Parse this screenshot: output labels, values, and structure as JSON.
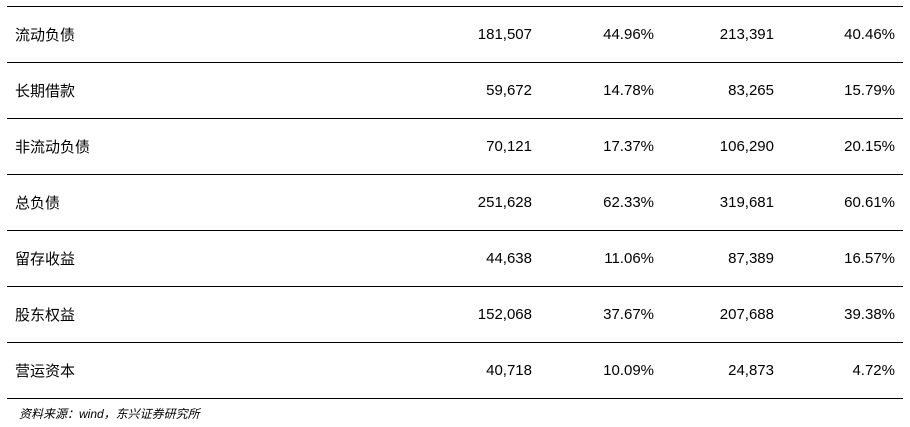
{
  "table": {
    "rows": [
      [
        "流动负债",
        "181,507",
        "44.96%",
        "213,391",
        "40.46%"
      ],
      [
        "长期借款",
        "59,672",
        "14.78%",
        "83,265",
        "15.79%"
      ],
      [
        "非流动负债",
        "70,121",
        "17.37%",
        "106,290",
        "20.15%"
      ],
      [
        "总负债",
        "251,628",
        "62.33%",
        "319,681",
        "60.61%"
      ],
      [
        "留存收益",
        "44,638",
        "11.06%",
        "87,389",
        "16.57%"
      ],
      [
        "股东权益",
        "152,068",
        "37.67%",
        "207,688",
        "39.38%"
      ],
      [
        "营运资本",
        "40,718",
        "10.09%",
        "24,873",
        "4.72%"
      ]
    ]
  },
  "source": "资料来源：wind，东兴证券研究所"
}
